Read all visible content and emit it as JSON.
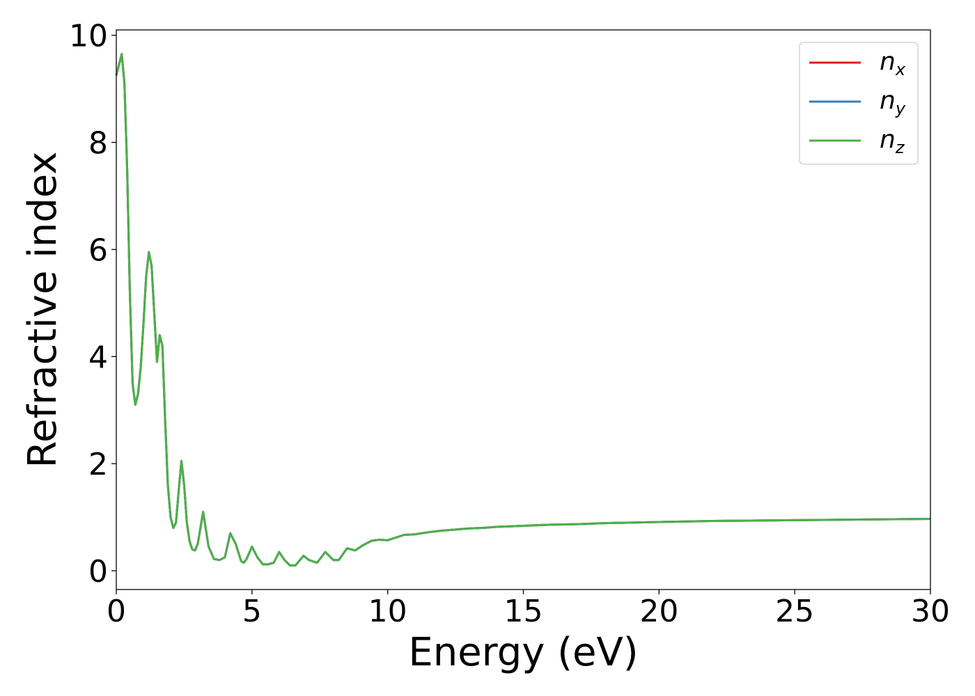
{
  "chart_data": {
    "type": "line",
    "xlabel": "Energy (eV)",
    "ylabel": "Refractive index",
    "xlim": [
      0,
      30
    ],
    "ylim": [
      -0.35,
      10.1
    ],
    "xticks": [
      0,
      5,
      10,
      15,
      20,
      25,
      30
    ],
    "yticks": [
      0,
      2,
      4,
      6,
      8,
      10
    ],
    "grid": false,
    "legend_position": "top-right",
    "x": [
      0,
      0.1,
      0.2,
      0.3,
      0.4,
      0.5,
      0.6,
      0.7,
      0.8,
      0.9,
      1.0,
      1.1,
      1.2,
      1.3,
      1.4,
      1.5,
      1.6,
      1.7,
      1.8,
      1.9,
      2.0,
      2.1,
      2.2,
      2.3,
      2.4,
      2.5,
      2.6,
      2.7,
      2.8,
      2.9,
      3.0,
      3.2,
      3.4,
      3.6,
      3.8,
      4.0,
      4.2,
      4.4,
      4.6,
      4.7,
      4.8,
      5.0,
      5.2,
      5.4,
      5.6,
      5.8,
      6.0,
      6.2,
      6.4,
      6.6,
      6.9,
      7.1,
      7.4,
      7.7,
      8.0,
      8.2,
      8.5,
      8.8,
      9.1,
      9.4,
      9.7,
      10.0,
      10.3,
      10.6,
      11.0,
      11.5,
      12.0,
      12.5,
      13.0,
      13.5,
      14.0,
      14.5,
      15.0,
      15.5,
      16.0,
      17.0,
      18.0,
      19.0,
      20.0,
      21.0,
      22.0,
      23.0,
      24.0,
      25.0,
      26.0,
      27.0,
      28.0,
      29.0,
      30.0
    ],
    "series": [
      {
        "name": "n_x",
        "label_base": "n",
        "label_sub": "x",
        "color": "#e41a1c",
        "values": [
          9.25,
          9.45,
          9.65,
          9.1,
          7.5,
          5.2,
          3.5,
          3.1,
          3.3,
          3.8,
          4.6,
          5.5,
          5.95,
          5.7,
          4.8,
          3.9,
          4.4,
          4.2,
          2.8,
          1.6,
          1.0,
          0.8,
          0.9,
          1.5,
          2.05,
          1.6,
          0.9,
          0.55,
          0.4,
          0.38,
          0.5,
          1.1,
          0.45,
          0.22,
          0.2,
          0.25,
          0.7,
          0.5,
          0.18,
          0.15,
          0.22,
          0.45,
          0.25,
          0.12,
          0.12,
          0.15,
          0.35,
          0.2,
          0.1,
          0.1,
          0.28,
          0.2,
          0.15,
          0.35,
          0.2,
          0.2,
          0.42,
          0.38,
          0.48,
          0.56,
          0.58,
          0.57,
          0.62,
          0.67,
          0.68,
          0.72,
          0.75,
          0.77,
          0.79,
          0.8,
          0.82,
          0.83,
          0.84,
          0.85,
          0.86,
          0.87,
          0.89,
          0.9,
          0.91,
          0.92,
          0.93,
          0.935,
          0.94,
          0.945,
          0.95,
          0.955,
          0.96,
          0.965,
          0.97
        ]
      },
      {
        "name": "n_y",
        "label_base": "n",
        "label_sub": "y",
        "color": "#377eb8",
        "values": [
          9.25,
          9.45,
          9.65,
          9.1,
          7.5,
          5.2,
          3.5,
          3.1,
          3.3,
          3.8,
          4.6,
          5.5,
          5.95,
          5.7,
          4.8,
          3.9,
          4.4,
          4.2,
          2.8,
          1.6,
          1.0,
          0.8,
          0.9,
          1.5,
          2.05,
          1.6,
          0.9,
          0.55,
          0.4,
          0.38,
          0.5,
          1.1,
          0.45,
          0.22,
          0.2,
          0.25,
          0.7,
          0.5,
          0.18,
          0.15,
          0.22,
          0.45,
          0.25,
          0.12,
          0.12,
          0.15,
          0.35,
          0.2,
          0.1,
          0.1,
          0.28,
          0.2,
          0.15,
          0.35,
          0.2,
          0.2,
          0.42,
          0.38,
          0.48,
          0.56,
          0.58,
          0.57,
          0.62,
          0.67,
          0.68,
          0.72,
          0.75,
          0.77,
          0.79,
          0.8,
          0.82,
          0.83,
          0.84,
          0.85,
          0.86,
          0.87,
          0.89,
          0.9,
          0.91,
          0.92,
          0.93,
          0.935,
          0.94,
          0.945,
          0.95,
          0.955,
          0.96,
          0.965,
          0.97
        ]
      },
      {
        "name": "n_z",
        "label_base": "n",
        "label_sub": "z",
        "color": "#4daf4a",
        "values": [
          9.25,
          9.45,
          9.65,
          9.1,
          7.5,
          5.2,
          3.5,
          3.1,
          3.3,
          3.8,
          4.6,
          5.5,
          5.95,
          5.7,
          4.8,
          3.9,
          4.4,
          4.2,
          2.8,
          1.6,
          1.0,
          0.8,
          0.9,
          1.5,
          2.05,
          1.6,
          0.9,
          0.55,
          0.4,
          0.38,
          0.5,
          1.1,
          0.45,
          0.22,
          0.2,
          0.25,
          0.7,
          0.5,
          0.18,
          0.15,
          0.22,
          0.45,
          0.25,
          0.12,
          0.12,
          0.15,
          0.35,
          0.2,
          0.1,
          0.1,
          0.28,
          0.2,
          0.15,
          0.35,
          0.2,
          0.2,
          0.42,
          0.38,
          0.48,
          0.56,
          0.58,
          0.57,
          0.62,
          0.67,
          0.68,
          0.72,
          0.75,
          0.77,
          0.79,
          0.8,
          0.82,
          0.83,
          0.84,
          0.85,
          0.86,
          0.87,
          0.89,
          0.9,
          0.91,
          0.92,
          0.93,
          0.935,
          0.94,
          0.945,
          0.95,
          0.955,
          0.96,
          0.965,
          0.97
        ]
      }
    ]
  }
}
